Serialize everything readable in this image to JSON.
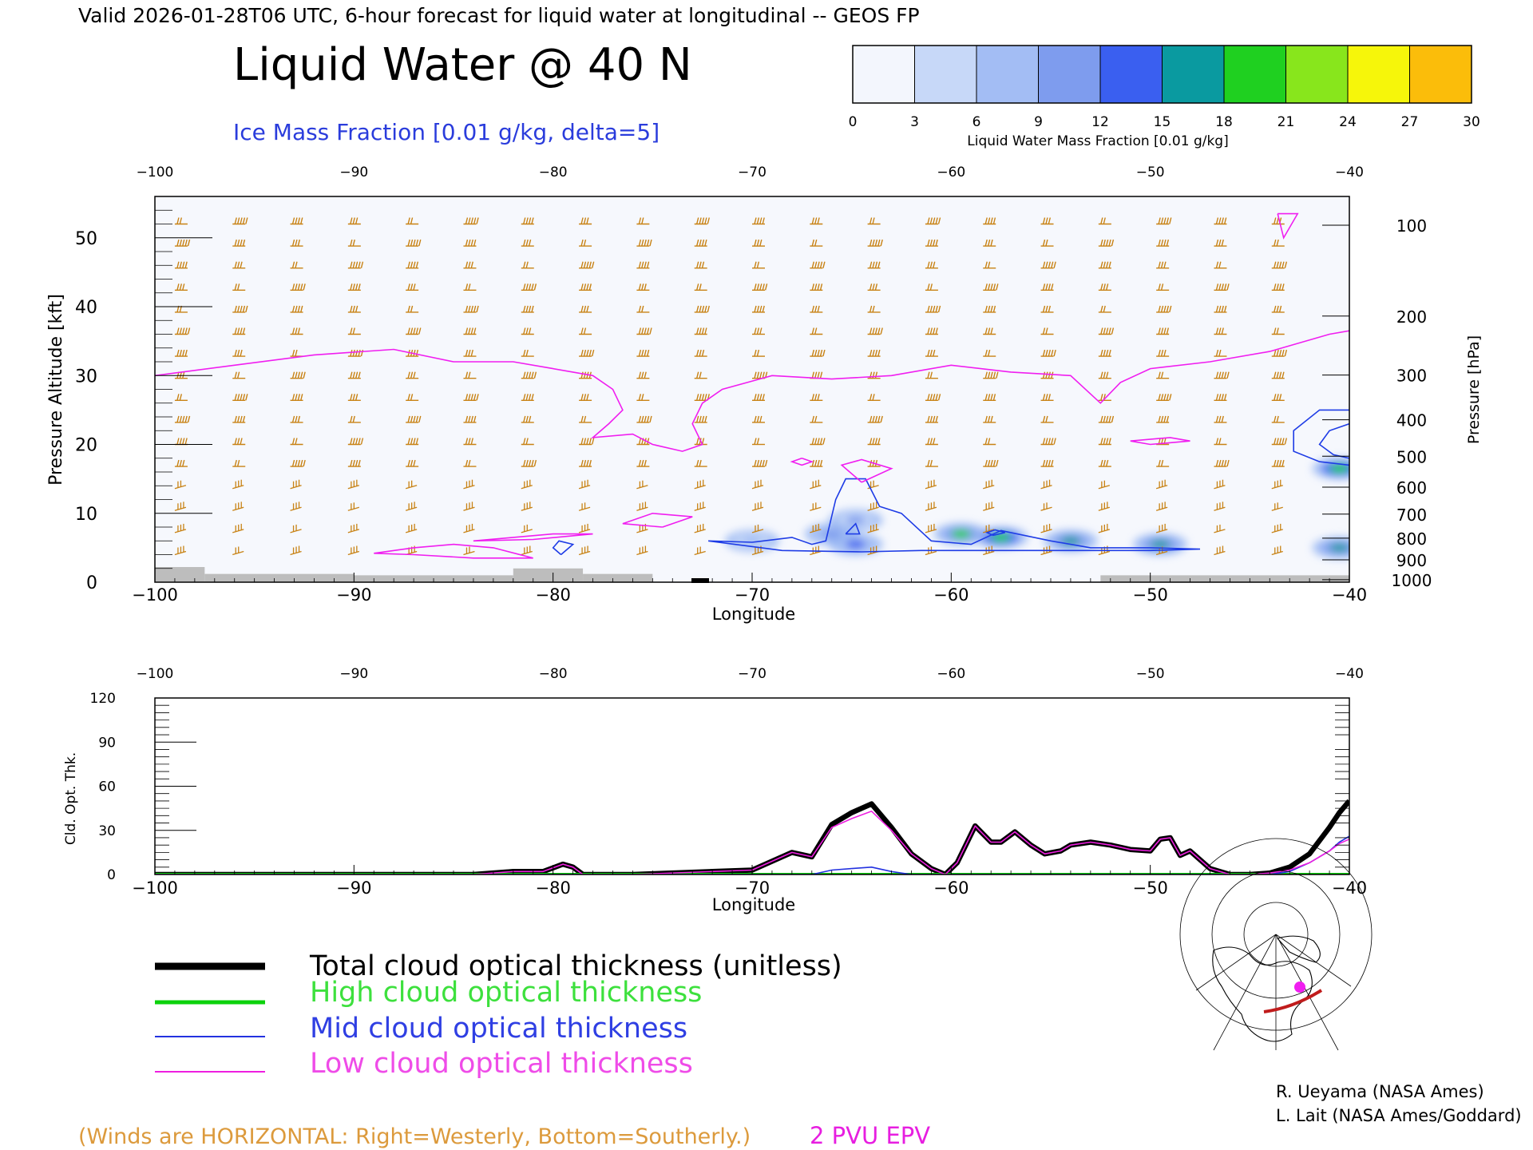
{
  "header": {
    "valid_line": "Valid 2026-01-28T06 UTC, 6-hour forecast for liquid water at longitudinal -- GEOS FP",
    "main_title": "Liquid Water @ 40 N",
    "subtitle": "Ice Mass Fraction [0.01 g/kg, delta=5]"
  },
  "colorbar": {
    "label": "Liquid Water Mass Fraction [0.01 g/kg]",
    "ticks": [
      "0",
      "3",
      "6",
      "9",
      "12",
      "15",
      "18",
      "21",
      "24",
      "27",
      "30"
    ],
    "colors": [
      "#f3f6fd",
      "#c7d8f8",
      "#a3bdf4",
      "#7e9cee",
      "#3a5ff0",
      "#0a9aa0",
      "#1fd020",
      "#88e61c",
      "#f6f60a",
      "#fbbd0a",
      "#f55a08"
    ]
  },
  "colors": {
    "ice_contour": "#1e3ce6",
    "epv_contour": "#f01ef0",
    "wind_barb": "#c88214",
    "terrain": "#bdbdbd",
    "total_line": "#000000",
    "high_line": "#0cd20c",
    "mid_line": "#2332e0",
    "low_line": "#ee1ee0",
    "winds_note": "#dc9a3c"
  },
  "chart_data": [
    {
      "type": "heatmap",
      "title": "Liquid Water @ 40 N",
      "xlabel": "Longitude",
      "ylabel_left": "Pressure Altitude [kft]",
      "ylabel_right": "Pressure [hPa]",
      "xlim": [
        -100,
        -40
      ],
      "ylim": [
        0,
        56
      ],
      "x_ticks": [
        -100,
        -90,
        -80,
        -70,
        -60,
        -50,
        -40
      ],
      "x_tick_labels": [
        "−100",
        "−90",
        "−80",
        "−70",
        "−60",
        "−50",
        "−40"
      ],
      "y_ticks": [
        0,
        10,
        20,
        30,
        40,
        50
      ],
      "pressure_ticks": [
        100,
        200,
        300,
        400,
        500,
        600,
        700,
        800,
        900,
        1000
      ],
      "liquid_water_blobs": [
        {
          "lon": -66.0,
          "kft": 7.0,
          "peak": 11
        },
        {
          "lon": -64.8,
          "kft": 5.5,
          "peak": 13
        },
        {
          "lon": -64.8,
          "kft": 9.0,
          "peak": 9
        },
        {
          "lon": -59.5,
          "kft": 7.0,
          "peak": 18
        },
        {
          "lon": -57.5,
          "kft": 6.5,
          "peak": 20
        },
        {
          "lon": -54.0,
          "kft": 6.0,
          "peak": 17
        },
        {
          "lon": -49.5,
          "kft": 5.5,
          "peak": 15
        },
        {
          "lon": -40.5,
          "kft": 16.5,
          "peak": 20
        },
        {
          "lon": -40.5,
          "kft": 5.0,
          "peak": 16
        },
        {
          "lon": -70.0,
          "kft": 6.0,
          "peak": 7
        }
      ],
      "ice_contours": [
        [
          [
            -72.2,
            6.0
          ],
          [
            -70.0,
            5.8
          ],
          [
            -68.0,
            6.5
          ],
          [
            -67.0,
            5.5
          ],
          [
            -66.3,
            6.0
          ],
          [
            -65.8,
            12.0
          ],
          [
            -65.3,
            15.0
          ],
          [
            -64.3,
            15.0
          ],
          [
            -63.6,
            11.0
          ],
          [
            -62.5,
            10.0
          ],
          [
            -61.0,
            6.0
          ],
          [
            -59.0,
            5.5
          ],
          [
            -57.5,
            7.5
          ],
          [
            -55.0,
            6.0
          ],
          [
            -53.0,
            5.0
          ],
          [
            -50.0,
            5.0
          ],
          [
            -47.5,
            4.8
          ],
          [
            -50.0,
            4.6
          ],
          [
            -56.0,
            4.6
          ],
          [
            -61.5,
            4.6
          ],
          [
            -64.5,
            4.4
          ],
          [
            -66.5,
            4.5
          ],
          [
            -68.5,
            4.6
          ],
          [
            -72.2,
            6.0
          ]
        ],
        [
          [
            -40.0,
            25.0
          ],
          [
            -41.5,
            25.0
          ],
          [
            -42.8,
            22.0
          ],
          [
            -42.8,
            19.0
          ],
          [
            -41.5,
            17.5
          ],
          [
            -40.0,
            17.0
          ]
        ],
        [
          [
            -40.0,
            23.0
          ],
          [
            -41.0,
            22.0
          ],
          [
            -41.5,
            20.0
          ],
          [
            -40.8,
            18.5
          ],
          [
            -40.0,
            18.0
          ]
        ],
        [
          [
            -79.6,
            4.0
          ],
          [
            -79.0,
            5.5
          ],
          [
            -79.7,
            6.0
          ],
          [
            -80.0,
            5.0
          ],
          [
            -79.6,
            4.0
          ]
        ],
        [
          [
            -65.3,
            7.0
          ],
          [
            -64.6,
            7.0
          ],
          [
            -64.8,
            8.5
          ],
          [
            -65.3,
            7.0
          ]
        ],
        [
          [
            -57.9,
            6.8
          ],
          [
            -57.3,
            7.2
          ],
          [
            -57.8,
            7.6
          ],
          [
            -58.2,
            7.2
          ],
          [
            -57.9,
            6.8
          ]
        ]
      ],
      "epv_2pvu": [
        [
          [
            -100,
            30.0
          ],
          [
            -96,
            31.5
          ],
          [
            -92,
            33.0
          ],
          [
            -88,
            33.8
          ],
          [
            -85,
            32.0
          ],
          [
            -82,
            32.0
          ],
          [
            -80,
            31.0
          ],
          [
            -78,
            30.0
          ],
          [
            -77.0,
            28.0
          ],
          [
            -76.5,
            25.0
          ],
          [
            -77.2,
            23.0
          ],
          [
            -78.0,
            21.0
          ],
          [
            -76.0,
            21.5
          ],
          [
            -75.0,
            20.0
          ],
          [
            -73.5,
            19.0
          ],
          [
            -72.5,
            20.0
          ],
          [
            -73.0,
            23.0
          ],
          [
            -72.5,
            26.0
          ],
          [
            -71.5,
            28.0
          ],
          [
            -69.0,
            30.0
          ],
          [
            -66.0,
            29.5
          ],
          [
            -63.0,
            30.0
          ],
          [
            -60.0,
            31.5
          ],
          [
            -57.0,
            30.5
          ],
          [
            -54.0,
            30.0
          ],
          [
            -52.5,
            26.0
          ],
          [
            -51.5,
            29.0
          ],
          [
            -50.0,
            31.0
          ],
          [
            -47.0,
            32.0
          ],
          [
            -44.0,
            33.5
          ],
          [
            -41.0,
            36.0
          ],
          [
            -40.0,
            36.5
          ]
        ],
        [
          [
            -81.0,
            3.5
          ],
          [
            -83.0,
            5.0
          ],
          [
            -85.0,
            5.5
          ],
          [
            -87.0,
            5.0
          ],
          [
            -89.0,
            4.2
          ],
          [
            -87.0,
            4.0
          ],
          [
            -84.0,
            3.5
          ],
          [
            -81.0,
            3.5
          ]
        ],
        [
          [
            -78.0,
            7.0
          ],
          [
            -80.0,
            7.0
          ],
          [
            -84.0,
            6.0
          ],
          [
            -81.0,
            6.2
          ],
          [
            -78.0,
            7.0
          ]
        ],
        [
          [
            -74.5,
            8.0
          ],
          [
            -73.0,
            9.5
          ],
          [
            -75.0,
            10.0
          ],
          [
            -76.5,
            8.5
          ],
          [
            -74.5,
            8.0
          ]
        ],
        [
          [
            -64.5,
            14.5
          ],
          [
            -65.5,
            17.0
          ],
          [
            -64.5,
            17.8
          ],
          [
            -63.0,
            16.5
          ],
          [
            -64.5,
            14.5
          ]
        ],
        [
          [
            -67.5,
            18.0
          ],
          [
            -67.0,
            17.5
          ],
          [
            -67.5,
            17.0
          ],
          [
            -68.0,
            17.5
          ],
          [
            -67.5,
            18.0
          ]
        ],
        [
          [
            -43.6,
            53.5
          ],
          [
            -43.3,
            50.0
          ],
          [
            -42.6,
            53.5
          ],
          [
            -43.6,
            53.5
          ]
        ],
        [
          [
            -51.0,
            20.5
          ],
          [
            -49.0,
            21.0
          ],
          [
            -48.0,
            20.5
          ],
          [
            -50.0,
            20.0
          ],
          [
            -51.0,
            20.5
          ]
        ]
      ],
      "terrain_segments": [
        {
          "x0": -100.0,
          "x1": -97.5,
          "h": 2.2
        },
        {
          "x0": -97.5,
          "x1": -90.0,
          "h": 1.2
        },
        {
          "x0": -90.0,
          "x1": -82.0,
          "h": 1.0
        },
        {
          "x0": -82.0,
          "x1": -78.5,
          "h": 2.0
        },
        {
          "x0": -78.5,
          "x1": -75.0,
          "h": 1.2
        },
        {
          "x0": -52.5,
          "x1": -40.0,
          "h": 1.0
        }
      ]
    },
    {
      "type": "line",
      "ylabel": "Cld. Opt. Thk.",
      "xlabel": "Longitude",
      "xlim": [
        -100,
        -40
      ],
      "ylim": [
        0,
        120
      ],
      "x_ticks": [
        -100,
        -90,
        -80,
        -70,
        -60,
        -50,
        -40
      ],
      "x_tick_labels": [
        "−100",
        "−90",
        "−80",
        "−70",
        "−60",
        "−50",
        "−40"
      ],
      "y_ticks": [
        0,
        30,
        60,
        90,
        120
      ],
      "x": [
        -100,
        -96,
        -92,
        -88,
        -84,
        -82,
        -80.5,
        -79.5,
        -79,
        -78.5,
        -76,
        -72,
        -70,
        -68,
        -67,
        -66,
        -65,
        -64,
        -63,
        -62,
        -61,
        -60.3,
        -59.7,
        -58.8,
        -58,
        -57.5,
        -56.8,
        -56,
        -55.3,
        -54.5,
        -54,
        -53,
        -52,
        -51,
        -50,
        -49.5,
        -49,
        -48.5,
        -48,
        -47,
        -46,
        -45,
        -44,
        -43,
        -42,
        -41,
        -40.5,
        -40
      ],
      "series": [
        {
          "name": "Total cloud optical thickness (unitless)",
          "values": [
            0,
            0,
            0,
            0,
            0,
            2,
            2,
            7,
            5,
            0,
            0,
            2,
            3,
            15,
            12,
            34,
            42,
            48,
            32,
            14,
            4,
            0,
            8,
            33,
            22,
            22,
            29,
            20,
            14,
            16,
            20,
            22,
            20,
            17,
            16,
            24,
            25,
            13,
            16,
            4,
            0,
            0,
            1,
            5,
            14,
            32,
            42,
            50
          ]
        },
        {
          "name": "High cloud optical thickness",
          "values": [
            0,
            0,
            0,
            0,
            0,
            0,
            0,
            0,
            0,
            0,
            0,
            0,
            0,
            0,
            0,
            0,
            0,
            0,
            0,
            0,
            0,
            0,
            0,
            0,
            0,
            0,
            0,
            0,
            0,
            0,
            0,
            0,
            0,
            0,
            0,
            0,
            0,
            0,
            0,
            0,
            0,
            0,
            0,
            0,
            0,
            0,
            0,
            0
          ]
        },
        {
          "name": "Mid cloud optical thickness",
          "values": [
            0,
            0,
            0,
            0,
            0,
            0,
            0,
            0,
            0,
            0,
            0,
            0,
            0,
            0,
            0,
            3,
            4,
            5,
            2,
            0,
            0,
            0,
            0,
            0,
            0,
            0,
            0,
            0,
            0,
            0,
            0,
            0,
            0,
            0,
            0,
            0,
            0,
            0,
            0,
            0,
            0,
            0,
            0,
            2,
            8,
            16,
            22,
            26
          ]
        },
        {
          "name": "Low cloud optical thickness",
          "values": [
            0,
            0,
            0,
            0,
            0,
            2,
            2,
            7,
            5,
            0,
            0,
            2,
            3,
            15,
            12,
            32,
            38,
            43,
            30,
            14,
            4,
            0,
            8,
            33,
            22,
            22,
            29,
            20,
            14,
            16,
            20,
            22,
            20,
            17,
            16,
            24,
            25,
            13,
            16,
            4,
            0,
            0,
            1,
            3,
            8,
            16,
            21,
            24
          ]
        }
      ]
    }
  ],
  "legend": {
    "items": [
      {
        "label": "Total cloud optical thickness (unitless)",
        "color": "#000000"
      },
      {
        "label": "High cloud optical thickness",
        "color": "#0cd20c"
      },
      {
        "label": "Mid cloud optical thickness",
        "color": "#2332e0"
      },
      {
        "label": "Low cloud optical thickness",
        "color": "#ee1ee0"
      }
    ]
  },
  "notes": {
    "winds": "(Winds are HORIZONTAL: Right=Westerly, Bottom=Southerly.)",
    "epv": "2 PVU EPV"
  },
  "credits": {
    "line1": "R. Ueyama (NASA Ames)",
    "line2": "L. Lait (NASA Ames/Goddard)"
  }
}
